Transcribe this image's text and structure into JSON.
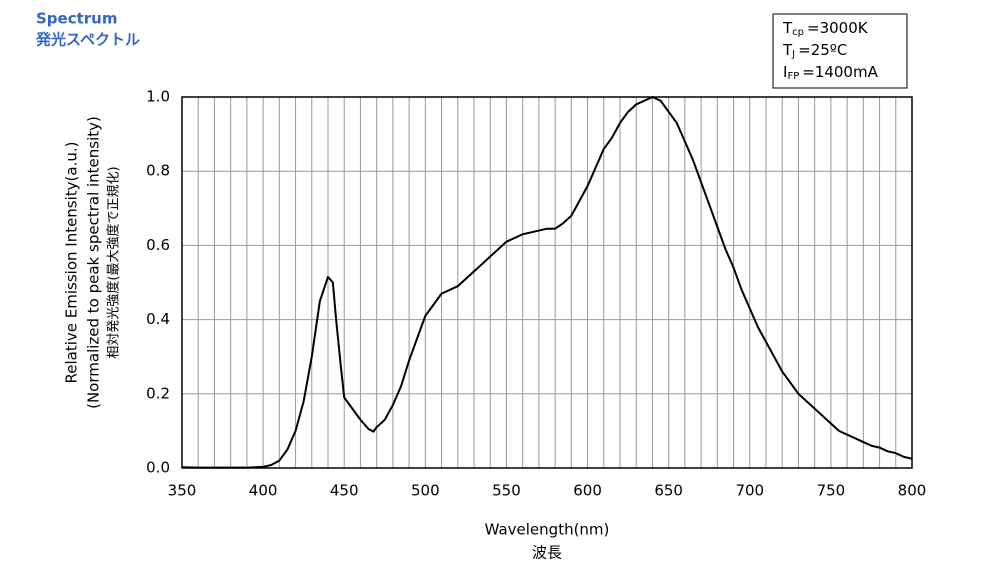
{
  "chart_data": {
    "type": "line",
    "title": "Spectrum",
    "subtitle": "発光スペクトル",
    "xlabel": "Wavelength(nm)",
    "xlabel_sub": "波長",
    "ylabel": [
      "Relative Emission Intensity(a.u.)",
      "(Normalized to peak spectral intensity)",
      "相対発光強度(最大強度で正規化)"
    ],
    "conditions": [
      {
        "symbol": "T",
        "sub": "cp",
        "text": "=3000K"
      },
      {
        "symbol": "T",
        "sub": "J",
        "text": "=25ºC"
      },
      {
        "symbol": "I",
        "sub": "FP",
        "text": "=1400mA"
      }
    ],
    "xlim": [
      350,
      800
    ],
    "ylim": [
      0,
      1
    ],
    "xticks": [
      350,
      400,
      450,
      500,
      550,
      600,
      650,
      700,
      750,
      800
    ],
    "xminor": [
      360,
      370,
      380,
      390,
      410,
      420,
      430,
      440,
      460,
      470,
      480,
      490,
      510,
      520,
      530,
      540,
      560,
      570,
      580,
      590,
      610,
      620,
      630,
      640,
      660,
      670,
      680,
      690,
      710,
      720,
      730,
      740,
      760,
      770,
      780,
      790
    ],
    "yticks": [
      {
        "value": 0,
        "label": "0.0"
      },
      {
        "value": 0.2,
        "label": "0.2"
      },
      {
        "value": 0.4,
        "label": "0.4"
      },
      {
        "value": 0.6,
        "label": "0.6"
      },
      {
        "value": 0.8,
        "label": "0.8"
      },
      {
        "value": 1,
        "label": "1.0"
      }
    ],
    "grid": true,
    "series": [
      {
        "color": "#000000",
        "x": [
          350,
          360,
          370,
          380,
          390,
          400,
          405,
          410,
          415,
          420,
          425,
          430,
          435,
          440,
          443,
          445,
          448,
          450,
          455,
          460,
          465,
          468,
          470,
          475,
          480,
          485,
          490,
          495,
          500,
          505,
          510,
          515,
          520,
          525,
          530,
          535,
          540,
          545,
          550,
          555,
          560,
          565,
          570,
          575,
          580,
          585,
          590,
          595,
          600,
          605,
          610,
          615,
          620,
          625,
          630,
          635,
          640,
          645,
          650,
          655,
          660,
          665,
          670,
          675,
          680,
          685,
          690,
          695,
          700,
          705,
          710,
          715,
          720,
          725,
          730,
          735,
          740,
          745,
          750,
          755,
          760,
          765,
          770,
          775,
          780,
          785,
          790,
          795,
          800
        ],
        "values": [
          0.002,
          0.001,
          0.001,
          0.001,
          0.001,
          0.003,
          0.008,
          0.02,
          0.05,
          0.1,
          0.18,
          0.3,
          0.45,
          0.515,
          0.5,
          0.4,
          0.27,
          0.19,
          0.16,
          0.13,
          0.105,
          0.098,
          0.11,
          0.13,
          0.17,
          0.22,
          0.29,
          0.35,
          0.41,
          0.44,
          0.47,
          0.48,
          0.49,
          0.51,
          0.53,
          0.55,
          0.57,
          0.59,
          0.61,
          0.62,
          0.63,
          0.635,
          0.64,
          0.645,
          0.645,
          0.66,
          0.68,
          0.72,
          0.76,
          0.81,
          0.86,
          0.89,
          0.93,
          0.96,
          0.98,
          0.99,
          1.0,
          0.99,
          0.96,
          0.93,
          0.88,
          0.83,
          0.77,
          0.71,
          0.65,
          0.59,
          0.54,
          0.48,
          0.43,
          0.38,
          0.34,
          0.3,
          0.26,
          0.23,
          0.2,
          0.18,
          0.16,
          0.14,
          0.12,
          0.1,
          0.09,
          0.08,
          0.07,
          0.06,
          0.055,
          0.045,
          0.04,
          0.03,
          0.025
        ]
      }
    ]
  }
}
